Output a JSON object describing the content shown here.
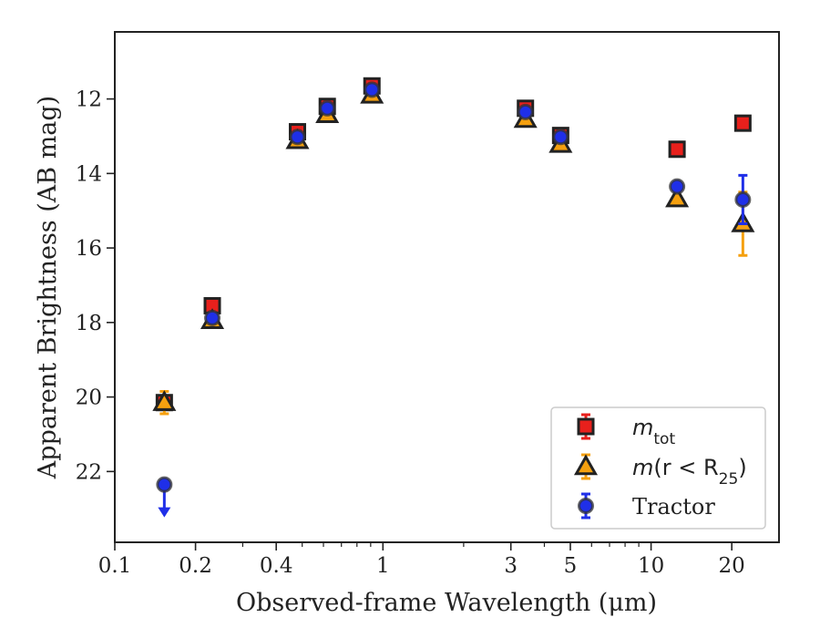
{
  "chart_data": {
    "type": "scatter",
    "title": "",
    "xlabel": "Observed-frame Wavelength (μm)",
    "ylabel": "Apparent Brightness (AB mag)",
    "xscale": "log",
    "xlim": [
      0.1,
      30
    ],
    "ylim": [
      23.9,
      10.2
    ],
    "y_inverted": true,
    "grid": false,
    "legend_position": "lower-right",
    "x_ticks": [
      0.1,
      0.2,
      0.4,
      1,
      3,
      5,
      10,
      20
    ],
    "x_tick_labels": [
      "0.1",
      "0.2",
      "0.4",
      "1",
      "3",
      "5",
      "10",
      "20"
    ],
    "y_ticks": [
      12,
      14,
      16,
      18,
      20,
      22
    ],
    "y_tick_labels": [
      "12",
      "14",
      "16",
      "18",
      "20",
      "22"
    ],
    "series": [
      {
        "name": "m_tot",
        "legend_label_base": "m",
        "legend_label_sub": "tot",
        "marker": "square",
        "face_color": "#e8201c",
        "edge_color": "#222222",
        "errbar_color": "#e8201c",
        "x": [
          0.153,
          0.231,
          0.48,
          0.62,
          0.91,
          3.4,
          4.6,
          12.5,
          22.0
        ],
        "y": [
          20.15,
          17.55,
          12.88,
          12.2,
          11.65,
          12.25,
          12.98,
          13.35,
          12.65
        ],
        "yerr": [
          0,
          0,
          0,
          0,
          0,
          0,
          0,
          0,
          0
        ]
      },
      {
        "name": "m(r < R25)",
        "legend_label_base": "m(r < R",
        "legend_label_sub": "25",
        "legend_label_end": ")",
        "marker": "triangle",
        "face_color": "#f5a00f",
        "edge_color": "#222222",
        "errbar_color": "#f5a00f",
        "x": [
          0.153,
          0.231,
          0.48,
          0.62,
          0.91,
          3.4,
          4.6,
          12.5,
          22.0
        ],
        "y": [
          20.15,
          17.95,
          13.12,
          12.42,
          11.9,
          12.55,
          13.22,
          14.68,
          15.35
        ],
        "yerr": [
          0.3,
          0,
          0,
          0,
          0,
          0,
          0,
          0,
          0.85
        ]
      },
      {
        "name": "Tractor",
        "marker": "circle",
        "face_color": "#1f2fe8",
        "edge_color": "#333333",
        "errbar_color": "#1f2fe8",
        "x": [
          0.153,
          0.231,
          0.48,
          0.62,
          0.91,
          3.4,
          4.6,
          12.5,
          22.0
        ],
        "y": [
          22.35,
          17.88,
          13.02,
          12.25,
          11.75,
          12.35,
          13.02,
          14.35,
          14.7
        ],
        "yerr": [
          0,
          0,
          0,
          0,
          0,
          0,
          0,
          0,
          0.65
        ],
        "upper_limit_index": 0
      }
    ],
    "legend": {
      "entries": [
        "m_tot",
        "m(r < R25)",
        "Tractor"
      ]
    }
  }
}
